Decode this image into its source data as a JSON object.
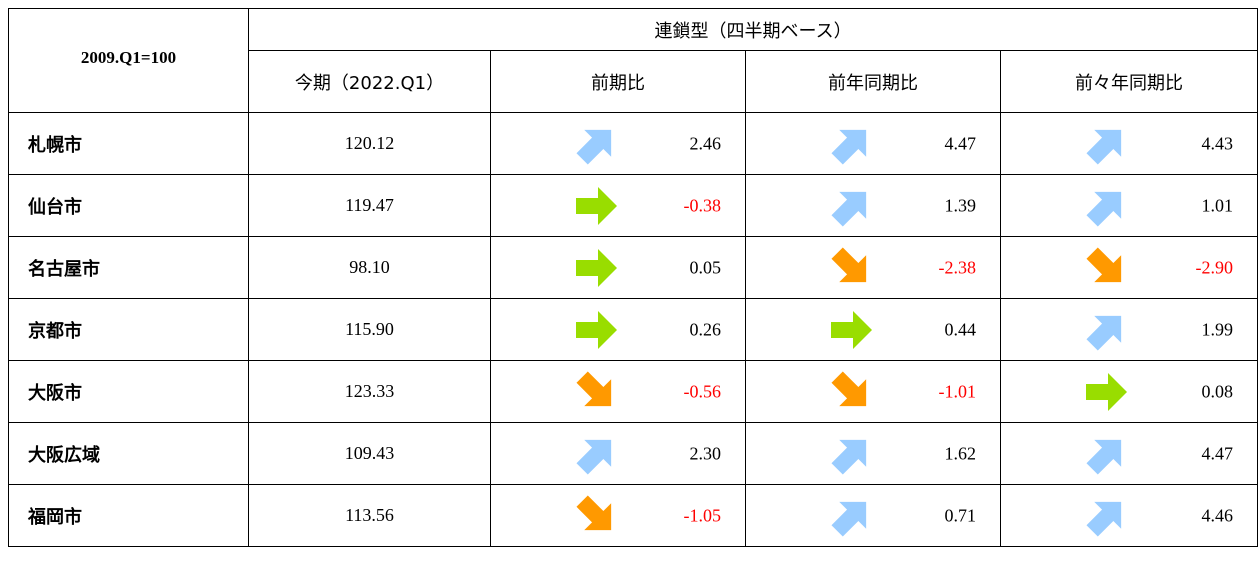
{
  "table": {
    "corner_label": "2009.Q1=100",
    "group_label": "連鎖型（四半期ベース）",
    "columns": [
      "今期（2022.Q1）",
      "前期比",
      "前年同期比",
      "前々年同期比"
    ],
    "colors": {
      "up": "#99ccff",
      "flat": "#99dd00",
      "down": "#ff9900",
      "negative_text": "#ff0000"
    },
    "rows": [
      {
        "city": "札幌市",
        "current": "120.12",
        "changes": [
          {
            "dir": "up",
            "value": "2.46"
          },
          {
            "dir": "up",
            "value": "4.47"
          },
          {
            "dir": "up",
            "value": "4.43"
          }
        ]
      },
      {
        "city": "仙台市",
        "current": "119.47",
        "changes": [
          {
            "dir": "flat",
            "value": "-0.38"
          },
          {
            "dir": "up",
            "value": "1.39"
          },
          {
            "dir": "up",
            "value": "1.01"
          }
        ]
      },
      {
        "city": "名古屋市",
        "current": "98.10",
        "changes": [
          {
            "dir": "flat",
            "value": "0.05"
          },
          {
            "dir": "down",
            "value": "-2.38"
          },
          {
            "dir": "down",
            "value": "-2.90"
          }
        ]
      },
      {
        "city": "京都市",
        "current": "115.90",
        "changes": [
          {
            "dir": "flat",
            "value": "0.26"
          },
          {
            "dir": "flat",
            "value": "0.44"
          },
          {
            "dir": "up",
            "value": "1.99"
          }
        ]
      },
      {
        "city": "大阪市",
        "current": "123.33",
        "changes": [
          {
            "dir": "down",
            "value": "-0.56"
          },
          {
            "dir": "down",
            "value": "-1.01"
          },
          {
            "dir": "flat",
            "value": "0.08"
          }
        ]
      },
      {
        "city": "大阪広域",
        "current": "109.43",
        "changes": [
          {
            "dir": "up",
            "value": "2.30"
          },
          {
            "dir": "up",
            "value": "1.62"
          },
          {
            "dir": "up",
            "value": "4.47"
          }
        ]
      },
      {
        "city": "福岡市",
        "current": "113.56",
        "changes": [
          {
            "dir": "down",
            "value": "-1.05"
          },
          {
            "dir": "up",
            "value": "0.71"
          },
          {
            "dir": "up",
            "value": "4.46"
          }
        ]
      }
    ]
  }
}
